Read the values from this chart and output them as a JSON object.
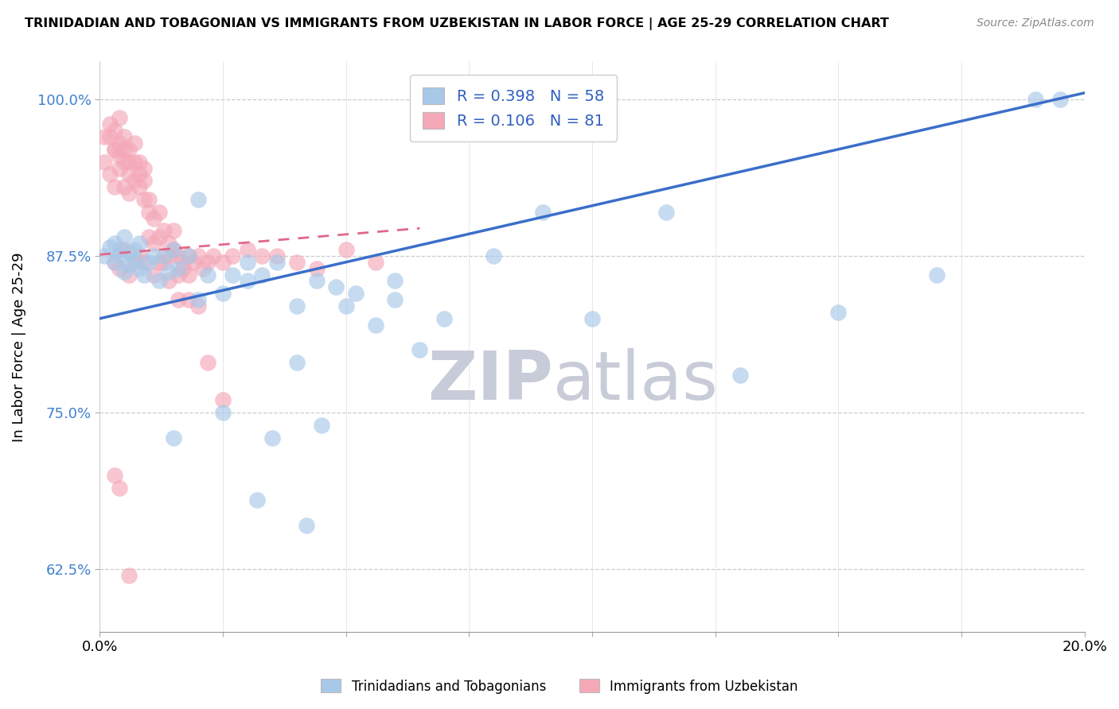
{
  "title": "TRINIDADIAN AND TOBAGONIAN VS IMMIGRANTS FROM UZBEKISTAN IN LABOR FORCE | AGE 25-29 CORRELATION CHART",
  "source": "Source: ZipAtlas.com",
  "ylabel": "In Labor Force | Age 25-29",
  "legend_blue_label": "Trinidadians and Tobagonians",
  "legend_pink_label": "Immigrants from Uzbekistan",
  "R_blue": 0.398,
  "N_blue": 58,
  "R_pink": 0.106,
  "N_pink": 81,
  "xlim": [
    0.0,
    0.2
  ],
  "ylim": [
    0.575,
    1.03
  ],
  "yticks": [
    0.625,
    0.75,
    0.875,
    1.0
  ],
  "ytick_labels": [
    "62.5%",
    "75.0%",
    "87.5%",
    "100.0%"
  ],
  "xticks": [
    0.0,
    0.025,
    0.05,
    0.075,
    0.1,
    0.125,
    0.15,
    0.175,
    0.2
  ],
  "xtick_labels": [
    "0.0%",
    "",
    "",
    "",
    "",
    "",
    "",
    "",
    "20.0%"
  ],
  "blue_color": "#A8C8E8",
  "pink_color": "#F4A8B8",
  "blue_line_color": "#3B6FC9",
  "pink_line_color": "#E06888",
  "watermark_zip": "ZIP",
  "watermark_atlas": "atlas",
  "blue_line_x0": 0.0,
  "blue_line_y0": 0.825,
  "blue_line_x1": 0.2,
  "blue_line_y1": 1.005,
  "pink_line_x0": 0.0,
  "pink_line_x1": 0.065,
  "pink_line_y0": 0.876,
  "pink_line_y1": 0.897,
  "blue_scatter_x": [
    0.001,
    0.002,
    0.003,
    0.003,
    0.004,
    0.004,
    0.005,
    0.005,
    0.006,
    0.006,
    0.007,
    0.007,
    0.008,
    0.008,
    0.009,
    0.01,
    0.011,
    0.012,
    0.013,
    0.014,
    0.015,
    0.016,
    0.018,
    0.02,
    0.022,
    0.025,
    0.027,
    0.03,
    0.033,
    0.036,
    0.04,
    0.044,
    0.048,
    0.052,
    0.056,
    0.06,
    0.065,
    0.07,
    0.08,
    0.09,
    0.1,
    0.115,
    0.13,
    0.15,
    0.17,
    0.19,
    0.02,
    0.03,
    0.04,
    0.05,
    0.06,
    0.045,
    0.035,
    0.025,
    0.015,
    0.032,
    0.042,
    0.195
  ],
  "blue_scatter_y": [
    0.875,
    0.882,
    0.87,
    0.885,
    0.88,
    0.875,
    0.862,
    0.89,
    0.878,
    0.868,
    0.872,
    0.88,
    0.865,
    0.885,
    0.86,
    0.87,
    0.875,
    0.855,
    0.875,
    0.862,
    0.88,
    0.865,
    0.875,
    0.84,
    0.86,
    0.845,
    0.86,
    0.855,
    0.86,
    0.87,
    0.835,
    0.855,
    0.85,
    0.845,
    0.82,
    0.855,
    0.8,
    0.825,
    0.875,
    0.91,
    0.825,
    0.91,
    0.78,
    0.83,
    0.86,
    1.0,
    0.92,
    0.87,
    0.79,
    0.835,
    0.84,
    0.74,
    0.73,
    0.75,
    0.73,
    0.68,
    0.66,
    1.0
  ],
  "pink_scatter_x": [
    0.001,
    0.001,
    0.002,
    0.002,
    0.002,
    0.003,
    0.003,
    0.003,
    0.003,
    0.004,
    0.004,
    0.004,
    0.004,
    0.005,
    0.005,
    0.005,
    0.005,
    0.006,
    0.006,
    0.006,
    0.006,
    0.007,
    0.007,
    0.007,
    0.008,
    0.008,
    0.008,
    0.009,
    0.009,
    0.009,
    0.01,
    0.01,
    0.01,
    0.011,
    0.011,
    0.012,
    0.012,
    0.013,
    0.013,
    0.014,
    0.014,
    0.015,
    0.015,
    0.016,
    0.016,
    0.017,
    0.017,
    0.018,
    0.018,
    0.019,
    0.02,
    0.021,
    0.022,
    0.023,
    0.025,
    0.027,
    0.03,
    0.033,
    0.036,
    0.04,
    0.044,
    0.05,
    0.056,
    0.012,
    0.008,
    0.005,
    0.003,
    0.006,
    0.004,
    0.007,
    0.009,
    0.011,
    0.014,
    0.016,
    0.018,
    0.02,
    0.022,
    0.025,
    0.003,
    0.004,
    0.006
  ],
  "pink_scatter_y": [
    0.97,
    0.95,
    0.97,
    0.94,
    0.98,
    0.96,
    0.93,
    0.96,
    0.975,
    0.955,
    0.945,
    0.965,
    0.985,
    0.95,
    0.93,
    0.96,
    0.97,
    0.95,
    0.925,
    0.94,
    0.96,
    0.935,
    0.95,
    0.965,
    0.94,
    0.93,
    0.95,
    0.935,
    0.945,
    0.92,
    0.92,
    0.89,
    0.91,
    0.905,
    0.885,
    0.89,
    0.91,
    0.895,
    0.87,
    0.885,
    0.875,
    0.88,
    0.895,
    0.875,
    0.86,
    0.865,
    0.87,
    0.875,
    0.86,
    0.87,
    0.875,
    0.865,
    0.87,
    0.875,
    0.87,
    0.875,
    0.88,
    0.875,
    0.875,
    0.87,
    0.865,
    0.88,
    0.87,
    0.87,
    0.875,
    0.88,
    0.87,
    0.86,
    0.865,
    0.87,
    0.87,
    0.86,
    0.855,
    0.84,
    0.84,
    0.835,
    0.79,
    0.76,
    0.7,
    0.69,
    0.62
  ]
}
